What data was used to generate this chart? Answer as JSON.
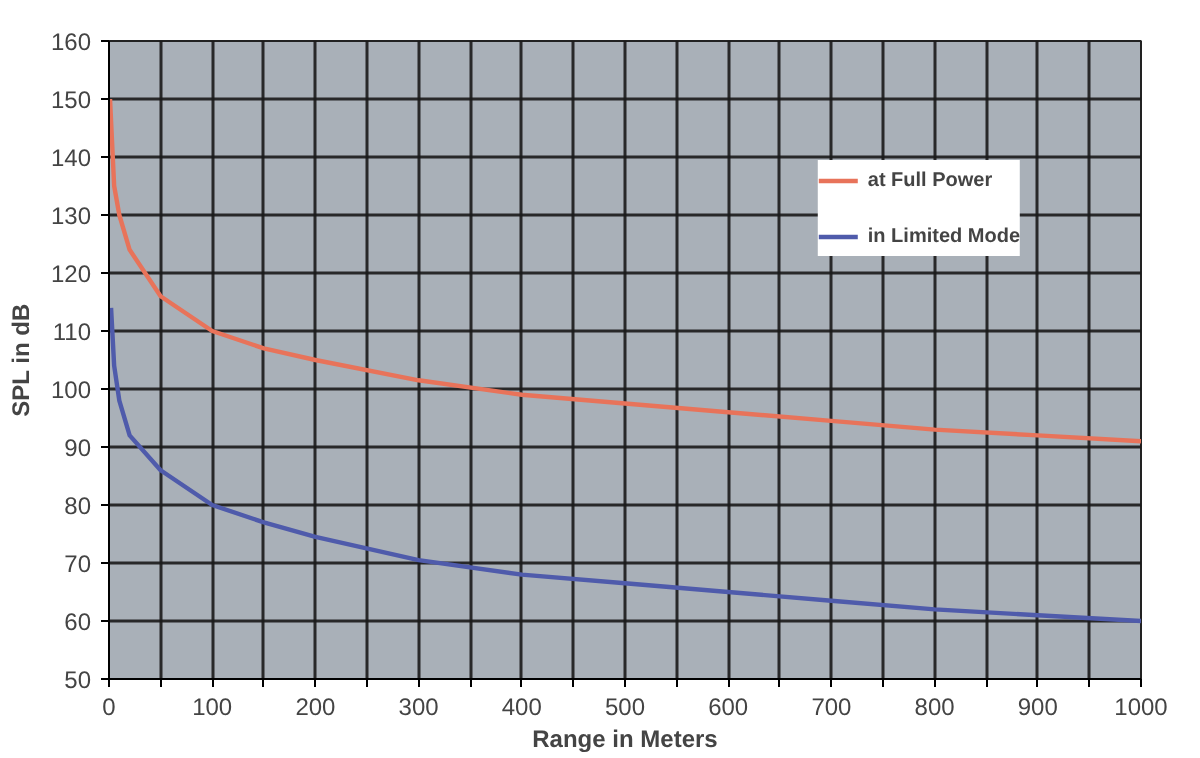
{
  "chart_data": {
    "type": "line",
    "xlabel": "Range in Meters",
    "ylabel": "SPL in dB",
    "xlim": [
      0,
      1000
    ],
    "ylim": [
      50,
      160
    ],
    "xticks": [
      0,
      {
        "value": 50,
        "label": null
      },
      100,
      {
        "value": 150,
        "label": null
      },
      200,
      {
        "value": 250,
        "label": null
      },
      300,
      {
        "value": 350,
        "label": null
      },
      400,
      {
        "value": 450,
        "label": null
      },
      500,
      {
        "value": 550,
        "label": null
      },
      600,
      {
        "value": 650,
        "label": null
      },
      700,
      {
        "value": 750,
        "label": null
      },
      800,
      {
        "value": 850,
        "label": null
      },
      900,
      {
        "value": 950,
        "label": null
      },
      1000
    ],
    "yticks": [
      50,
      60,
      70,
      80,
      90,
      100,
      110,
      120,
      130,
      140,
      150,
      160
    ],
    "grid": true,
    "legend": "top right",
    "marker": "none",
    "line_style": "solid",
    "series": [
      {
        "name": "at Full Power",
        "color": "#e8735a",
        "x": [
          1,
          5,
          10,
          20,
          50,
          100,
          150,
          200,
          300,
          400,
          500,
          600,
          700,
          800,
          900,
          1000
        ],
        "values": [
          150,
          135,
          130,
          124,
          116,
          110,
          107,
          105,
          101.5,
          99,
          97.5,
          96,
          94.5,
          93,
          92,
          91
        ]
      },
      {
        "name": "in Limited Mode",
        "color": "#4f5bab",
        "x": [
          2,
          5,
          10,
          20,
          50,
          100,
          150,
          200,
          300,
          400,
          500,
          600,
          700,
          800,
          900,
          1000
        ],
        "values": [
          114,
          104,
          98,
          92,
          86,
          80,
          77,
          74.5,
          70.5,
          68,
          66.5,
          65,
          63.5,
          62,
          61,
          60
        ]
      }
    ]
  }
}
